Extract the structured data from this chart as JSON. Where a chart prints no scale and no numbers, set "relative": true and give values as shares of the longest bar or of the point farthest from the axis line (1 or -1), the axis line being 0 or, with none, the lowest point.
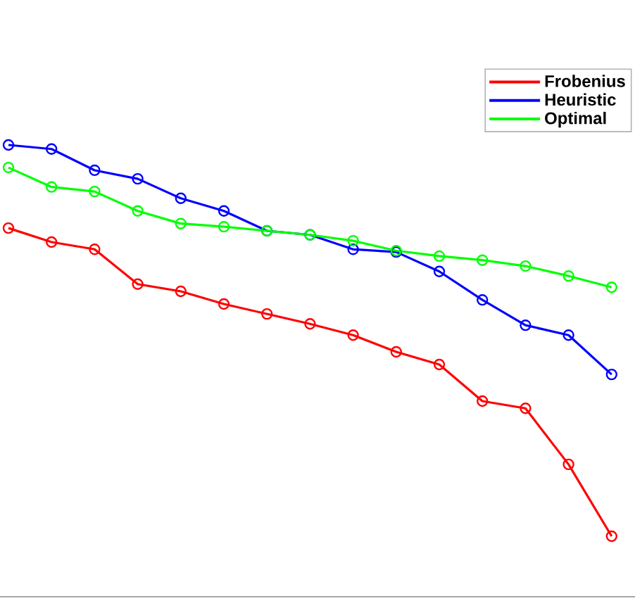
{
  "chart_data": {
    "type": "line",
    "relative": true,
    "marker": "circle",
    "line_style": "solid",
    "legend": "top right",
    "categories": [
      null,
      null,
      null,
      null,
      null,
      null,
      null,
      null,
      null,
      null,
      null,
      null,
      null,
      null,
      null
    ],
    "series": [
      {
        "name": "Frobenius",
        "color": "#ff0000",
        "values": [
          0.816,
          0.785,
          0.769,
          0.692,
          0.676,
          0.648,
          0.626,
          0.604,
          0.579,
          0.542,
          0.514,
          0.433,
          0.417,
          0.293,
          0.134
        ]
      },
      {
        "name": "Heuristic",
        "color": "#0000ff",
        "values": [
          1,
          0.991,
          0.944,
          0.925,
          0.882,
          0.854,
          0.81,
          0.801,
          0.769,
          0.763,
          0.72,
          0.657,
          0.601,
          0.579,
          0.492
        ]
      },
      {
        "name": "Optimal",
        "color": "#00ff00",
        "values": [
          0.95,
          0.907,
          0.897,
          0.854,
          0.826,
          0.819,
          0.81,
          0.801,
          0.788,
          0.766,
          0.754,
          0.745,
          0.732,
          0.71,
          0.685
        ]
      }
    ]
  }
}
